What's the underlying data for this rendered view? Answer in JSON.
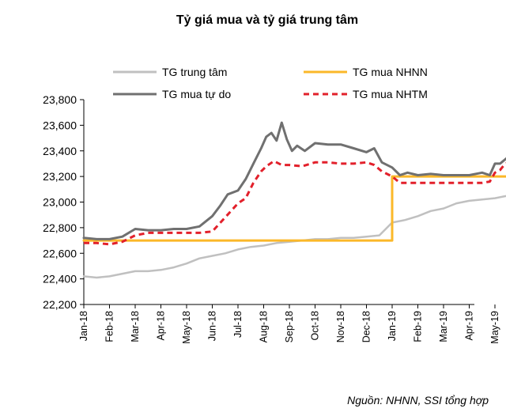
{
  "chart_data": {
    "type": "line",
    "title": "Tỷ giá mua và tỷ giá trung tâm",
    "source_note": "Nguồn: NHNN, SSI tổng hợp",
    "xlabel": "",
    "ylabel": "",
    "x_ticks": [
      "Jan-18",
      "Feb-18",
      "Mar-18",
      "Apr-18",
      "May-18",
      "Jun-18",
      "Jul-18",
      "Aug-18",
      "Sep-18",
      "Oct-18",
      "Nov-18",
      "Dec-18",
      "Jan-19",
      "Feb-19",
      "Mar-19",
      "Apr-19",
      "May-19"
    ],
    "y_ticks": [
      "22,200",
      "22,400",
      "22,600",
      "22,800",
      "23,000",
      "23,200",
      "23,400",
      "23,600",
      "23,800"
    ],
    "ylim": [
      22200,
      23800
    ],
    "xlim": [
      0,
      17.2
    ],
    "grid": false,
    "legend_position": "top",
    "series": [
      {
        "name": "TG trung tâm",
        "color": "#c0c0c0",
        "style": "solid",
        "x": [
          0,
          0.5,
          1,
          1.5,
          2,
          2.5,
          3,
          3.5,
          4,
          4.5,
          5,
          5.5,
          6,
          6.5,
          7,
          7.5,
          8,
          8.5,
          9,
          9.5,
          10,
          10.5,
          11,
          11.5,
          12,
          12.5,
          13,
          13.5,
          14,
          14.5,
          15,
          15.5,
          16,
          16.5,
          17,
          17.2
        ],
        "values": [
          22420,
          22410,
          22420,
          22440,
          22460,
          22460,
          22470,
          22490,
          22520,
          22560,
          22580,
          22600,
          22630,
          22650,
          22660,
          22680,
          22690,
          22700,
          22710,
          22710,
          22720,
          22720,
          22730,
          22740,
          22840,
          22860,
          22890,
          22930,
          22950,
          22990,
          23010,
          23020,
          23030,
          23050,
          23060,
          23060
        ]
      },
      {
        "name": "TG mua NHNN",
        "color": "#fbb829",
        "style": "step",
        "x": [
          0,
          12,
          12,
          17.2
        ],
        "values": [
          22700,
          22700,
          23200,
          23200
        ]
      },
      {
        "name": "TG mua tự do",
        "color": "#707070",
        "style": "solid",
        "x": [
          0,
          0.5,
          1,
          1.5,
          2,
          2.5,
          3,
          3.5,
          4,
          4.5,
          5,
          5.3,
          5.6,
          6,
          6.3,
          6.6,
          6.9,
          7.1,
          7.3,
          7.5,
          7.7,
          7.9,
          8.1,
          8.3,
          8.6,
          9,
          9.5,
          10,
          10.5,
          11,
          11.3,
          11.6,
          12,
          12.3,
          12.6,
          13,
          13.5,
          14,
          14.5,
          15,
          15.5,
          15.8,
          16,
          16.2,
          16.5,
          16.8,
          17,
          17.2
        ],
        "values": [
          22720,
          22710,
          22710,
          22730,
          22790,
          22780,
          22780,
          22790,
          22790,
          22810,
          22890,
          22970,
          23060,
          23090,
          23180,
          23300,
          23420,
          23510,
          23540,
          23480,
          23620,
          23490,
          23400,
          23440,
          23400,
          23460,
          23450,
          23450,
          23420,
          23390,
          23420,
          23310,
          23270,
          23210,
          23230,
          23210,
          23220,
          23210,
          23210,
          23210,
          23230,
          23210,
          23300,
          23300,
          23350,
          23390,
          23410,
          23400
        ]
      },
      {
        "name": "TG mua NHTM",
        "color": "#e2202b",
        "style": "dashed",
        "x": [
          0,
          0.5,
          1,
          1.5,
          2,
          2.5,
          3,
          3.5,
          4,
          4.5,
          5,
          5.5,
          6,
          6.3,
          6.6,
          6.9,
          7.1,
          7.4,
          7.7,
          8,
          8.5,
          9,
          9.5,
          10,
          10.5,
          11,
          11.3,
          11.6,
          12,
          12.3,
          12.6,
          13,
          13.5,
          14,
          14.5,
          15,
          15.5,
          15.8,
          16,
          16.2,
          16.4,
          16.7,
          17,
          17.2
        ],
        "values": [
          22680,
          22680,
          22670,
          22690,
          22740,
          22760,
          22760,
          22760,
          22760,
          22760,
          22770,
          22880,
          22990,
          23030,
          23150,
          23240,
          23280,
          23320,
          23290,
          23290,
          23280,
          23310,
          23310,
          23300,
          23300,
          23310,
          23290,
          23240,
          23200,
          23150,
          23150,
          23150,
          23150,
          23150,
          23150,
          23150,
          23150,
          23160,
          23230,
          23250,
          23300,
          23320,
          23340,
          23360
        ]
      }
    ]
  }
}
